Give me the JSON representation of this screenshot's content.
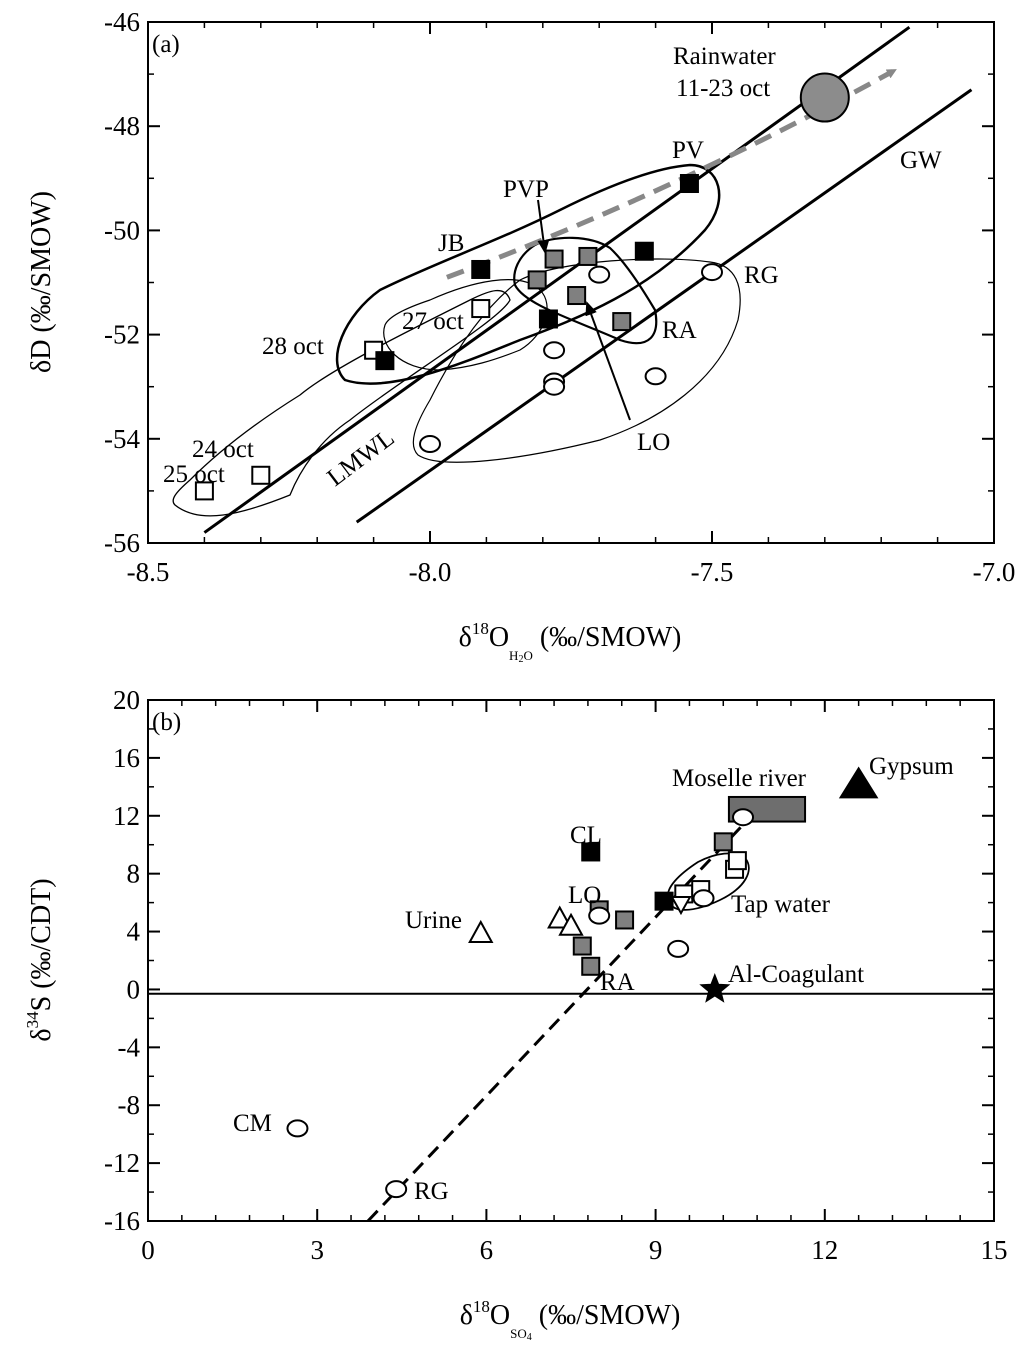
{
  "chart_data": [
    {
      "type": "scatter",
      "panel_label": "(a)",
      "xlabel": "δ18OH2O (‰/SMOW)",
      "xlabel_parts": {
        "delta": "δ",
        "sup": "18",
        "main": "O",
        "sub": "H",
        "sub2": "2",
        "sub3": "O",
        "unit": " (‰/SMOW)"
      },
      "ylabel": "δD (‰/SMOW)",
      "xlim": [
        -8.5,
        -7.0
      ],
      "ylim": [
        -56,
        -46
      ],
      "x_ticks": [
        "-8.5",
        "-8.0",
        "-7.5",
        "-7.0"
      ],
      "y_ticks": [
        "-56",
        "-54",
        "-52",
        "-50",
        "-48",
        "-46"
      ],
      "series": [
        {
          "marker": "open-square",
          "points": [
            [
              -8.4,
              -55.0
            ],
            [
              -8.3,
              -54.7
            ],
            [
              -8.1,
              -52.3
            ],
            [
              -7.91,
              -51.5
            ]
          ]
        },
        {
          "marker": "filled-square",
          "points": [
            [
              -8.08,
              -52.5
            ],
            [
              -7.91,
              -50.75
            ],
            [
              -7.79,
              -51.7
            ],
            [
              -7.62,
              -50.4
            ],
            [
              -7.54,
              -49.1
            ]
          ]
        },
        {
          "marker": "grey-square",
          "points": [
            [
              -7.81,
              -50.95
            ],
            [
              -7.78,
              -50.55
            ],
            [
              -7.72,
              -50.5
            ],
            [
              -7.74,
              -51.25
            ],
            [
              -7.66,
              -51.75
            ]
          ]
        },
        {
          "marker": "open-circle",
          "points": [
            [
              -8.0,
              -54.1
            ],
            [
              -7.78,
              -52.3
            ],
            [
              -7.78,
              -52.9
            ],
            [
              -7.78,
              -53.0
            ],
            [
              -7.7,
              -50.85
            ],
            [
              -7.6,
              -52.8
            ],
            [
              -7.5,
              -50.8
            ]
          ]
        },
        {
          "marker": "big-grey-circle",
          "points": [
            [
              -7.3,
              -47.45
            ]
          ]
        }
      ],
      "lines": [
        {
          "label": "LMWL",
          "from": [
            -8.4,
            -55.8
          ],
          "to": [
            -7.15,
            -46.1
          ]
        },
        {
          "label": "GW",
          "from": [
            -8.13,
            -55.6
          ],
          "to": [
            -7.04,
            -47.3
          ]
        }
      ],
      "arrow": {
        "from": [
          -7.97,
          -50.9
        ],
        "to": [
          -7.18,
          -46.95
        ],
        "style": "grey-dashed"
      },
      "group_labels": [
        "JB",
        "PV",
        "PVP",
        "RA",
        "RG",
        "LO",
        "27 oct",
        "28 oct",
        "24 oct",
        "25 oct"
      ],
      "annotations": {
        "rainwater": "Rainwater",
        "rain_dates": "11-23 oct"
      }
    },
    {
      "type": "scatter",
      "panel_label": "(b)",
      "xlabel": "δ18OSO4 (‰/SMOW)",
      "xlabel_parts": {
        "delta": "δ",
        "sup": "18",
        "main": "O",
        "sub": "SO",
        "sub2": "4",
        "unit": " (‰/SMOW)"
      },
      "ylabel": "δ34S (‰/CDT)",
      "ylabel_parts": {
        "delta": "δ",
        "sup": "34",
        "main": "S (‰/CDT)"
      },
      "xlim": [
        0,
        15
      ],
      "ylim": [
        -16,
        20
      ],
      "x_ticks": [
        "0",
        "3",
        "6",
        "9",
        "12",
        "15"
      ],
      "y_ticks": [
        "-16",
        "-12",
        "-8",
        "-4",
        "0",
        "4",
        "8",
        "12",
        "16",
        "20"
      ],
      "series": [
        {
          "marker": "filled-square",
          "points": [
            [
              7.85,
              9.5
            ],
            [
              9.15,
              6.1
            ]
          ]
        },
        {
          "marker": "grey-square",
          "points": [
            [
              7.7,
              3.0
            ],
            [
              7.85,
              1.6
            ],
            [
              8.0,
              5.5
            ],
            [
              8.45,
              4.8
            ],
            [
              10.2,
              10.2
            ]
          ]
        },
        {
          "marker": "open-square",
          "points": [
            [
              9.5,
              6.6
            ],
            [
              9.8,
              6.9
            ],
            [
              10.4,
              8.3
            ],
            [
              10.45,
              8.9
            ]
          ]
        },
        {
          "marker": "open-circle",
          "points": [
            [
              2.65,
              -9.6
            ],
            [
              4.4,
              -13.8
            ],
            [
              8.0,
              5.1
            ],
            [
              9.4,
              2.8
            ],
            [
              9.85,
              6.3
            ],
            [
              10.55,
              11.9
            ]
          ]
        },
        {
          "marker": "open-triangle",
          "points": [
            [
              5.9,
              3.9
            ],
            [
              7.3,
              4.9
            ],
            [
              7.5,
              4.4
            ]
          ]
        },
        {
          "marker": "filled-triangle",
          "points": [
            [
              12.6,
              14.1
            ]
          ]
        },
        {
          "marker": "star",
          "points": [
            [
              10.05,
              0.0
            ]
          ]
        },
        {
          "marker": "triangle-down-open",
          "points": [
            [
              9.45,
              5.9
            ]
          ]
        }
      ],
      "moselle_box": {
        "x": [
          10.3,
          11.65
        ],
        "y": [
          11.6,
          13.3
        ]
      },
      "hline_y": -0.3,
      "fit_line": {
        "from": [
          3.9,
          -16.0
        ],
        "to": [
          10.75,
          12.2
        ]
      },
      "group_labels": [
        "CL",
        "LO",
        "RA",
        "Urine",
        "CM",
        "RG",
        "Tap water",
        "Al-Coagulant",
        "Gypsum",
        "Moselle river"
      ]
    }
  ]
}
